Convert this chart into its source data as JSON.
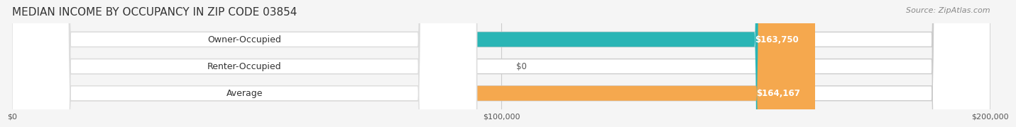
{
  "title": "MEDIAN INCOME BY OCCUPANCY IN ZIP CODE 03854",
  "source": "Source: ZipAtlas.com",
  "categories": [
    "Owner-Occupied",
    "Renter-Occupied",
    "Average"
  ],
  "values": [
    163750,
    0,
    164167
  ],
  "bar_colors": [
    "#2ab5b5",
    "#c9a8d4",
    "#f5a84e"
  ],
  "label_colors": [
    "#2ab5b5",
    "#c9a8d4",
    "#f5a84e"
  ],
  "value_labels": [
    "$163,750",
    "$0",
    "$164,167"
  ],
  "xlim": [
    0,
    200000
  ],
  "xticks": [
    0,
    100000,
    200000
  ],
  "xtick_labels": [
    "$0",
    "$100,000",
    "$200,000"
  ],
  "bar_height": 0.55,
  "background_color": "#f5f5f5",
  "title_fontsize": 11,
  "label_fontsize": 9,
  "value_fontsize": 8.5,
  "source_fontsize": 8
}
